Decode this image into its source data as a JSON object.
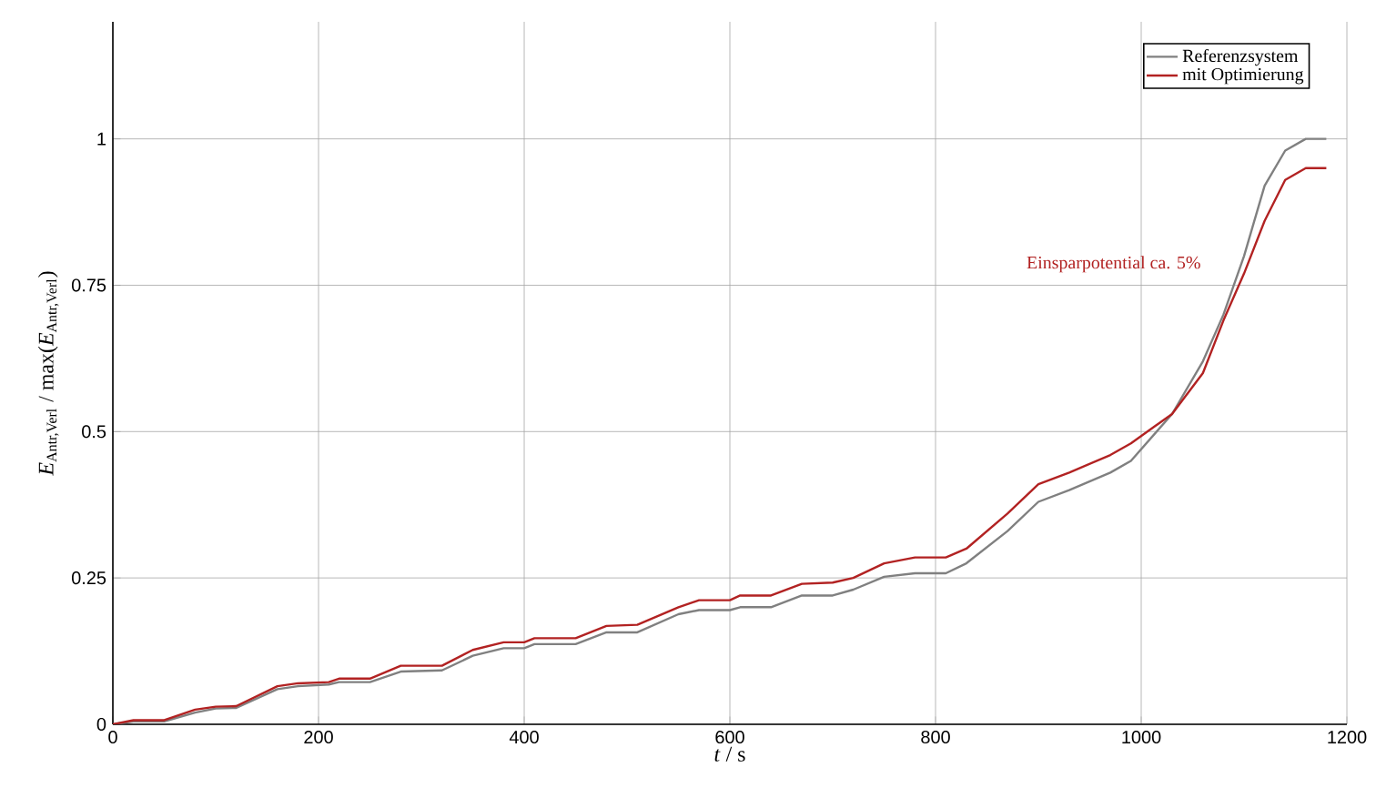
{
  "chart_data": {
    "type": "line",
    "xlabel": "*t* / s",
    "ylabel": "*E*$_{Antr,Verl}$ / max(*E*$_{Antr,Verl}$)",
    "xlim": [
      0,
      1200
    ],
    "ylim": [
      0,
      1.2
    ],
    "xticks": [
      0,
      200,
      400,
      600,
      800,
      1000,
      1200
    ],
    "yticks": [
      0,
      0.25,
      0.5,
      0.75,
      1
    ],
    "grid": true,
    "legend": "top right",
    "line_style": "solid",
    "marker": "none",
    "annotations": [
      "Einsparpotential ca. 5%"
    ],
    "series": [
      {
        "name": "Referenzsystem",
        "color": "#808080",
        "x": [
          0,
          20,
          50,
          80,
          100,
          120,
          160,
          180,
          210,
          220,
          250,
          280,
          320,
          350,
          380,
          400,
          410,
          450,
          480,
          510,
          550,
          570,
          600,
          610,
          640,
          670,
          700,
          720,
          750,
          780,
          810,
          830,
          870,
          900,
          930,
          970,
          990,
          1030,
          1060,
          1080,
          1100,
          1120,
          1140,
          1160,
          1180
        ],
        "values": [
          0,
          0.005,
          0.005,
          0.02,
          0.027,
          0.028,
          0.06,
          0.065,
          0.068,
          0.072,
          0.072,
          0.09,
          0.092,
          0.117,
          0.13,
          0.13,
          0.137,
          0.137,
          0.157,
          0.157,
          0.188,
          0.195,
          0.195,
          0.2,
          0.2,
          0.22,
          0.22,
          0.23,
          0.252,
          0.258,
          0.258,
          0.275,
          0.33,
          0.38,
          0.4,
          0.43,
          0.45,
          0.53,
          0.62,
          0.7,
          0.8,
          0.92,
          0.98,
          1.0,
          1.0
        ]
      },
      {
        "name": "mit Optimierung",
        "color": "#b22222",
        "x": [
          0,
          20,
          50,
          80,
          100,
          120,
          160,
          180,
          210,
          220,
          250,
          280,
          320,
          350,
          380,
          400,
          410,
          450,
          480,
          510,
          550,
          570,
          600,
          610,
          640,
          670,
          700,
          720,
          750,
          780,
          810,
          830,
          870,
          900,
          930,
          970,
          990,
          1030,
          1060,
          1080,
          1100,
          1120,
          1140,
          1160,
          1180
        ],
        "values": [
          0,
          0.007,
          0.007,
          0.025,
          0.03,
          0.031,
          0.065,
          0.07,
          0.072,
          0.078,
          0.078,
          0.1,
          0.1,
          0.127,
          0.14,
          0.14,
          0.147,
          0.147,
          0.168,
          0.17,
          0.2,
          0.212,
          0.212,
          0.22,
          0.22,
          0.24,
          0.242,
          0.25,
          0.275,
          0.285,
          0.285,
          0.3,
          0.36,
          0.41,
          0.43,
          0.46,
          0.48,
          0.53,
          0.6,
          0.69,
          0.77,
          0.86,
          0.93,
          0.95,
          0.95
        ]
      }
    ]
  }
}
